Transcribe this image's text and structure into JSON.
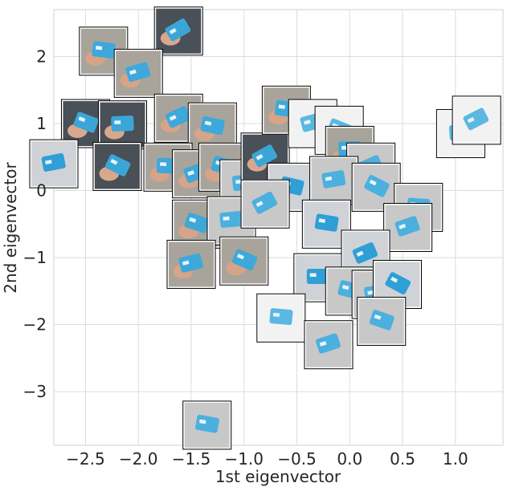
{
  "chart_data": {
    "type": "scatter",
    "title": "",
    "xlabel": "1st eigenvector",
    "ylabel": "2nd eigenvector",
    "xlim": [
      -2.8,
      1.45
    ],
    "ylim": [
      -3.8,
      2.7
    ],
    "grid": true,
    "xticks": [
      -2.5,
      -2.0,
      -1.5,
      -1.0,
      -0.5,
      0.0,
      0.5,
      1.0
    ],
    "xtick_labels": [
      "−2.5",
      "−2.0",
      "−1.5",
      "−1.0",
      "−0.5",
      "0.0",
      "0.5",
      "1.0"
    ],
    "yticks": [
      2,
      1,
      0,
      -1,
      -2,
      -3
    ],
    "ytick_labels": [
      "2",
      "1",
      "0",
      "−1",
      "−2",
      "−3"
    ],
    "marker": "image thumbnail",
    "points": [
      {
        "x": -1.62,
        "y": 2.38,
        "tone": "dark"
      },
      {
        "x": -2.33,
        "y": 2.08,
        "tone": "hand"
      },
      {
        "x": -2.0,
        "y": 1.75,
        "tone": "hand"
      },
      {
        "x": -2.5,
        "y": 1.0,
        "tone": "dark"
      },
      {
        "x": -2.15,
        "y": 0.98,
        "tone": "dark"
      },
      {
        "x": -1.62,
        "y": 1.08,
        "tone": "hand"
      },
      {
        "x": -1.3,
        "y": 0.95,
        "tone": "hand"
      },
      {
        "x": -2.8,
        "y": 0.4,
        "tone": "blue"
      },
      {
        "x": -2.2,
        "y": 0.36,
        "tone": "dark"
      },
      {
        "x": -1.72,
        "y": 0.35,
        "tone": "hand"
      },
      {
        "x": -1.45,
        "y": 0.25,
        "tone": "hand"
      },
      {
        "x": -1.2,
        "y": 0.35,
        "tone": "hand"
      },
      {
        "x": -1.0,
        "y": 0.1,
        "tone": "grey"
      },
      {
        "x": -0.8,
        "y": 0.5,
        "tone": "dark"
      },
      {
        "x": -0.6,
        "y": 1.2,
        "tone": "hand"
      },
      {
        "x": -0.35,
        "y": 1.0,
        "tone": "white"
      },
      {
        "x": -0.1,
        "y": 0.9,
        "tone": "white"
      },
      {
        "x": 0.0,
        "y": 0.6,
        "tone": "hand"
      },
      {
        "x": 0.2,
        "y": 0.35,
        "tone": "grey"
      },
      {
        "x": -0.55,
        "y": 0.05,
        "tone": "blue"
      },
      {
        "x": -0.15,
        "y": 0.15,
        "tone": "grey"
      },
      {
        "x": 0.25,
        "y": 0.05,
        "tone": "grey"
      },
      {
        "x": 0.65,
        "y": -0.25,
        "tone": "grey"
      },
      {
        "x": 0.55,
        "y": -0.55,
        "tone": "grey"
      },
      {
        "x": -1.45,
        "y": -0.5,
        "tone": "hand"
      },
      {
        "x": -1.12,
        "y": -0.45,
        "tone": "grey"
      },
      {
        "x": -0.8,
        "y": -0.2,
        "tone": "grey"
      },
      {
        "x": -0.22,
        "y": -0.5,
        "tone": "blue"
      },
      {
        "x": -1.5,
        "y": -1.1,
        "tone": "hand"
      },
      {
        "x": -1.0,
        "y": -1.05,
        "tone": "hand"
      },
      {
        "x": -0.3,
        "y": -1.3,
        "tone": "blue"
      },
      {
        "x": 0.15,
        "y": -0.95,
        "tone": "blue"
      },
      {
        "x": 0.0,
        "y": -1.5,
        "tone": "grey"
      },
      {
        "x": 0.25,
        "y": -1.55,
        "tone": "grey"
      },
      {
        "x": 0.45,
        "y": -1.4,
        "tone": "blue"
      },
      {
        "x": -0.65,
        "y": -1.9,
        "tone": "white"
      },
      {
        "x": -0.2,
        "y": -2.3,
        "tone": "grey"
      },
      {
        "x": 0.3,
        "y": -1.95,
        "tone": "grey"
      },
      {
        "x": 1.05,
        "y": 0.85,
        "tone": "white"
      },
      {
        "x": 1.2,
        "y": 1.05,
        "tone": "white"
      },
      {
        "x": -1.35,
        "y": -3.5,
        "tone": "grey"
      }
    ]
  }
}
